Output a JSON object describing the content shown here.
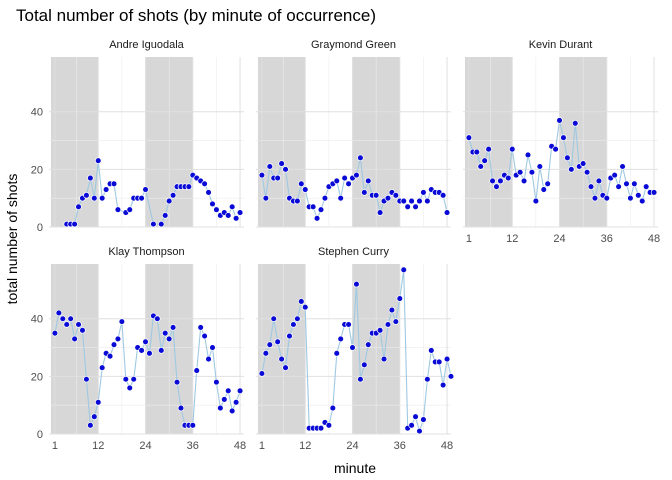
{
  "chart_data": {
    "type": "line",
    "title": "Total number of shots (by minute of occurrence)",
    "xlabel": "minute",
    "ylabel": "total number of shots",
    "xlim": [
      -0.5,
      49
    ],
    "ylim": [
      0,
      59
    ],
    "x_ticks": [
      1,
      12,
      24,
      36,
      48
    ],
    "x_tick_labels": [
      "1",
      "12",
      "24",
      "36",
      "48"
    ],
    "y_ticks": [
      0,
      20,
      40
    ],
    "y_tick_labels": [
      "0",
      "20",
      "40"
    ],
    "shaded_ranges": [
      [
        0,
        12
      ],
      [
        24,
        36
      ]
    ],
    "grid": true,
    "point_color": "#0a0ad6",
    "line_color": "#9ec9e2",
    "shade_color": "#d3d3d3",
    "facets": [
      {
        "name": "Andre Iguodala",
        "points": [
          [
            4,
            1
          ],
          [
            5,
            1
          ],
          [
            6,
            1
          ],
          [
            7,
            7
          ],
          [
            8,
            10
          ],
          [
            9,
            11
          ],
          [
            10,
            17
          ],
          [
            11,
            10
          ],
          [
            12,
            23
          ],
          [
            13,
            10
          ],
          [
            14,
            13
          ],
          [
            15,
            15
          ],
          [
            16,
            15
          ],
          [
            17,
            6
          ],
          [
            19,
            5
          ],
          [
            20,
            6
          ],
          [
            21,
            10
          ],
          [
            22,
            10
          ],
          [
            23,
            10
          ],
          [
            24,
            13
          ],
          [
            26,
            1
          ],
          [
            28,
            1
          ],
          [
            29,
            4
          ],
          [
            30,
            9
          ],
          [
            31,
            11
          ],
          [
            32,
            14
          ],
          [
            33,
            14
          ],
          [
            34,
            14
          ],
          [
            35,
            14
          ],
          [
            36,
            18
          ],
          [
            37,
            17
          ],
          [
            38,
            16
          ],
          [
            39,
            15
          ],
          [
            40,
            12
          ],
          [
            41,
            8
          ],
          [
            42,
            6
          ],
          [
            43,
            4
          ],
          [
            44,
            5
          ],
          [
            45,
            4
          ],
          [
            46,
            7
          ],
          [
            47,
            3
          ],
          [
            48,
            5
          ]
        ]
      },
      {
        "name": "Graymond Green",
        "points": [
          [
            1,
            18
          ],
          [
            2,
            10
          ],
          [
            3,
            21
          ],
          [
            4,
            17
          ],
          [
            5,
            17
          ],
          [
            6,
            22
          ],
          [
            7,
            20
          ],
          [
            8,
            10
          ],
          [
            9,
            9
          ],
          [
            10,
            9
          ],
          [
            11,
            15
          ],
          [
            12,
            13
          ],
          [
            13,
            7
          ],
          [
            14,
            7
          ],
          [
            15,
            3
          ],
          [
            16,
            6
          ],
          [
            17,
            10
          ],
          [
            18,
            14
          ],
          [
            19,
            15
          ],
          [
            20,
            16
          ],
          [
            21,
            10
          ],
          [
            22,
            17
          ],
          [
            23,
            15
          ],
          [
            24,
            17
          ],
          [
            25,
            18
          ],
          [
            26,
            24
          ],
          [
            27,
            12
          ],
          [
            28,
            16
          ],
          [
            29,
            11
          ],
          [
            30,
            11
          ],
          [
            31,
            5
          ],
          [
            32,
            9
          ],
          [
            33,
            10
          ],
          [
            34,
            12
          ],
          [
            35,
            11
          ],
          [
            36,
            9
          ],
          [
            37,
            9
          ],
          [
            38,
            7
          ],
          [
            39,
            9
          ],
          [
            40,
            7
          ],
          [
            41,
            9
          ],
          [
            42,
            12
          ],
          [
            43,
            9
          ],
          [
            44,
            13
          ],
          [
            45,
            12
          ],
          [
            46,
            12
          ],
          [
            47,
            11
          ],
          [
            48,
            5
          ]
        ]
      },
      {
        "name": "Kevin Durant",
        "points": [
          [
            1,
            31
          ],
          [
            2,
            26
          ],
          [
            3,
            26
          ],
          [
            4,
            21
          ],
          [
            5,
            23
          ],
          [
            6,
            27
          ],
          [
            7,
            16
          ],
          [
            8,
            14
          ],
          [
            9,
            16
          ],
          [
            10,
            18
          ],
          [
            11,
            17
          ],
          [
            12,
            27
          ],
          [
            13,
            18
          ],
          [
            14,
            19
          ],
          [
            15,
            16
          ],
          [
            16,
            25
          ],
          [
            17,
            19
          ],
          [
            18,
            9
          ],
          [
            19,
            21
          ],
          [
            20,
            13
          ],
          [
            21,
            15
          ],
          [
            22,
            28
          ],
          [
            23,
            27
          ],
          [
            24,
            37
          ],
          [
            25,
            31
          ],
          [
            26,
            24
          ],
          [
            27,
            20
          ],
          [
            28,
            36
          ],
          [
            29,
            21
          ],
          [
            30,
            22
          ],
          [
            31,
            19
          ],
          [
            32,
            14
          ],
          [
            33,
            10
          ],
          [
            34,
            16
          ],
          [
            35,
            11
          ],
          [
            36,
            10
          ],
          [
            37,
            17
          ],
          [
            38,
            18
          ],
          [
            39,
            14
          ],
          [
            40,
            21
          ],
          [
            41,
            15
          ],
          [
            42,
            10
          ],
          [
            43,
            15
          ],
          [
            44,
            11
          ],
          [
            45,
            9
          ],
          [
            46,
            14
          ],
          [
            47,
            12
          ],
          [
            48,
            12
          ]
        ]
      },
      {
        "name": "Klay Thompson",
        "points": [
          [
            1,
            35
          ],
          [
            2,
            42
          ],
          [
            3,
            40
          ],
          [
            4,
            38
          ],
          [
            5,
            40
          ],
          [
            6,
            33
          ],
          [
            7,
            38
          ],
          [
            8,
            36
          ],
          [
            9,
            19
          ],
          [
            10,
            3
          ],
          [
            11,
            6
          ],
          [
            12,
            11
          ],
          [
            13,
            23
          ],
          [
            14,
            28
          ],
          [
            15,
            27
          ],
          [
            16,
            31
          ],
          [
            17,
            33
          ],
          [
            18,
            39
          ],
          [
            19,
            19
          ],
          [
            20,
            16
          ],
          [
            21,
            19
          ],
          [
            22,
            30
          ],
          [
            23,
            29
          ],
          [
            24,
            32
          ],
          [
            25,
            28
          ],
          [
            26,
            41
          ],
          [
            27,
            40
          ],
          [
            28,
            29
          ],
          [
            29,
            35
          ],
          [
            30,
            33
          ],
          [
            31,
            37
          ],
          [
            32,
            18
          ],
          [
            33,
            9
          ],
          [
            34,
            3
          ],
          [
            35,
            3
          ],
          [
            36,
            3
          ],
          [
            37,
            22
          ],
          [
            38,
            37
          ],
          [
            39,
            34
          ],
          [
            40,
            26
          ],
          [
            41,
            30
          ],
          [
            42,
            18
          ],
          [
            43,
            9
          ],
          [
            44,
            12
          ],
          [
            45,
            15
          ],
          [
            46,
            8
          ],
          [
            47,
            11
          ],
          [
            48,
            15
          ]
        ]
      },
      {
        "name": "Stephen Curry",
        "points": [
          [
            1,
            21
          ],
          [
            2,
            28
          ],
          [
            3,
            31
          ],
          [
            4,
            40
          ],
          [
            5,
            32
          ],
          [
            6,
            26
          ],
          [
            7,
            23
          ],
          [
            8,
            34
          ],
          [
            9,
            38
          ],
          [
            10,
            40
          ],
          [
            11,
            46
          ],
          [
            12,
            44
          ],
          [
            13,
            2
          ],
          [
            14,
            2
          ],
          [
            15,
            2
          ],
          [
            16,
            2
          ],
          [
            17,
            4
          ],
          [
            18,
            3
          ],
          [
            19,
            9
          ],
          [
            20,
            28
          ],
          [
            21,
            33
          ],
          [
            22,
            38
          ],
          [
            23,
            38
          ],
          [
            24,
            30
          ],
          [
            25,
            52
          ],
          [
            26,
            19
          ],
          [
            27,
            24
          ],
          [
            28,
            31
          ],
          [
            29,
            35
          ],
          [
            30,
            35
          ],
          [
            31,
            36
          ],
          [
            32,
            26
          ],
          [
            33,
            38
          ],
          [
            34,
            43
          ],
          [
            35,
            39
          ],
          [
            36,
            47
          ],
          [
            37,
            57
          ],
          [
            38,
            2
          ],
          [
            39,
            3
          ],
          [
            40,
            6
          ],
          [
            41,
            1
          ],
          [
            42,
            5
          ],
          [
            43,
            19
          ],
          [
            44,
            29
          ],
          [
            45,
            25
          ],
          [
            46,
            25
          ],
          [
            47,
            17
          ],
          [
            48,
            26
          ],
          [
            49,
            20
          ]
        ]
      }
    ]
  }
}
